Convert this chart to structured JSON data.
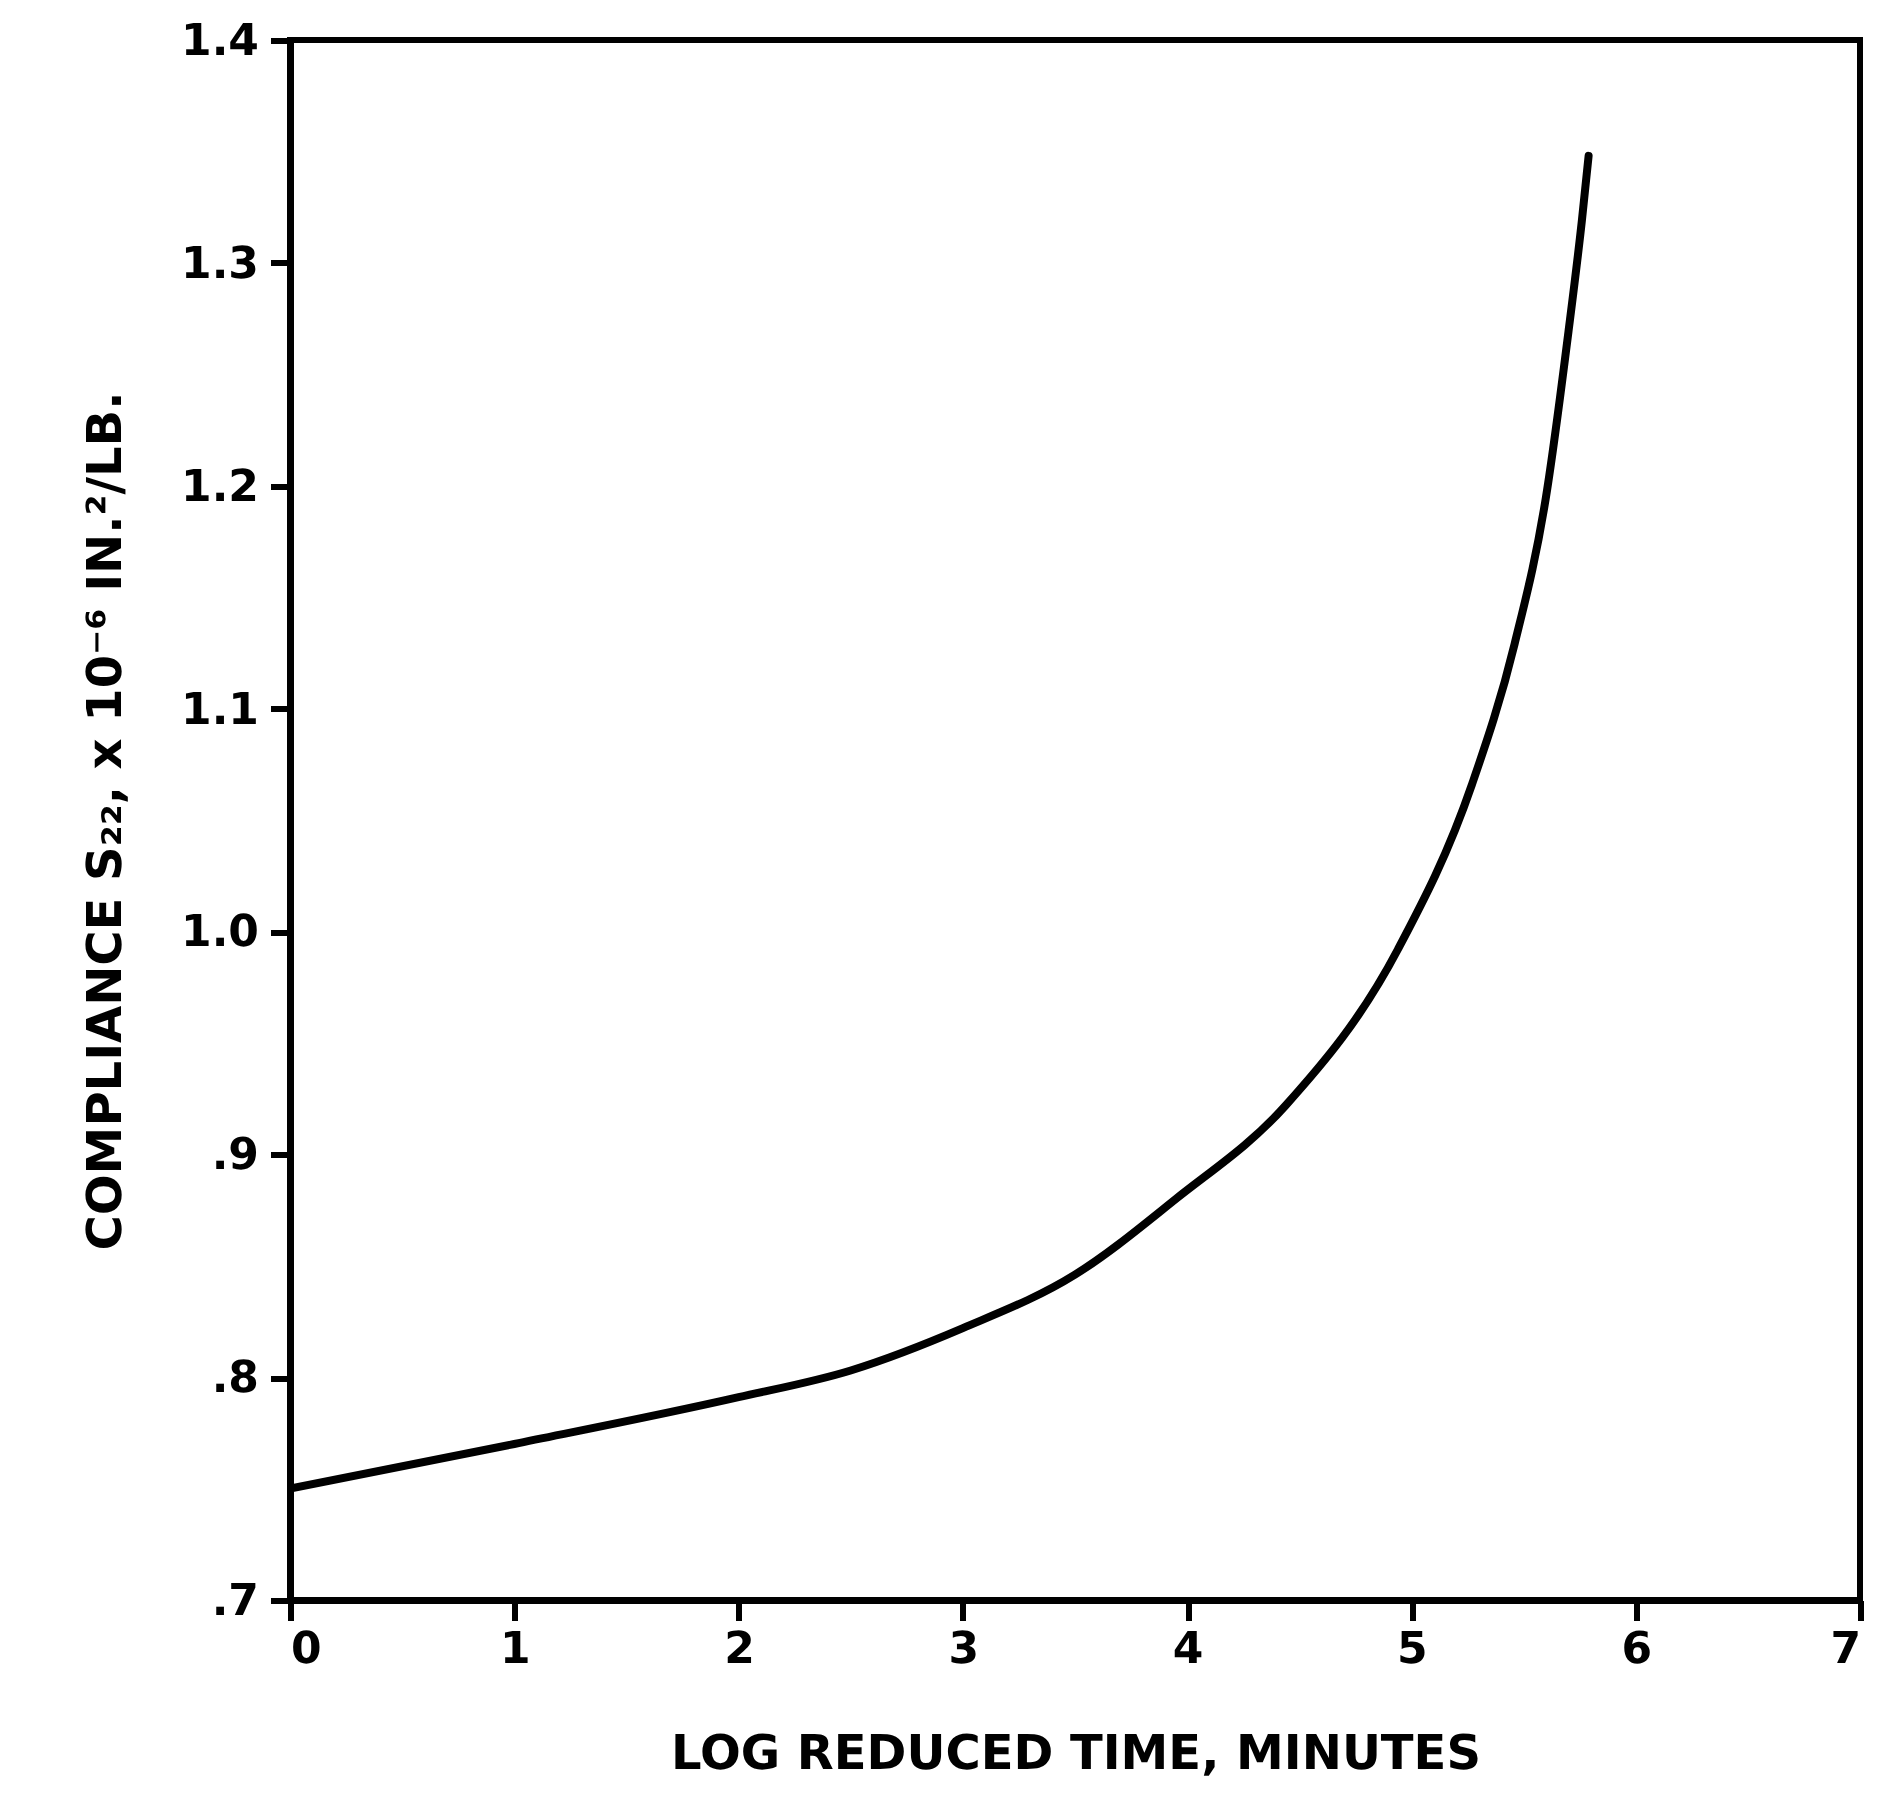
{
  "chart_data": {
    "type": "line",
    "xlabel": "LOG REDUCED TIME, MINUTES",
    "ylabel": "COMPLIANCE  S₂₂, x 10⁻⁶  IN.²/LB.",
    "x": [
      0,
      1,
      2,
      2.5,
      3,
      3.5,
      3.95,
      4.44,
      4.94,
      5.27,
      5.46,
      5.6,
      5.7,
      5.76,
      5.79
    ],
    "series": [
      {
        "color": "#000000",
        "values": [
          0.75,
          0.77,
          0.791,
          0.803,
          0.822,
          0.846,
          0.88,
          0.922,
          0.992,
          1.066,
          1.129,
          1.195,
          1.269,
          1.319,
          1.348
        ]
      }
    ],
    "xlim": [
      0,
      7
    ],
    "xticks": [
      0,
      1,
      2,
      3,
      4,
      5,
      6,
      7
    ],
    "ylim": [
      0.7,
      1.4
    ],
    "yticks": [
      {
        "value": 0.7,
        "label": ".7"
      },
      {
        "value": 0.8,
        "label": ".8"
      },
      {
        "value": 0.9,
        "label": ".9"
      },
      {
        "value": 1.0,
        "label": "1.0"
      },
      {
        "value": 1.1,
        "label": "1.1"
      },
      {
        "value": 1.2,
        "label": "1.2"
      },
      {
        "value": 1.3,
        "label": "1.3"
      },
      {
        "value": 1.4,
        "label": "1.4"
      }
    ],
    "grid": false,
    "marker": "none",
    "line_style": "solid"
  }
}
